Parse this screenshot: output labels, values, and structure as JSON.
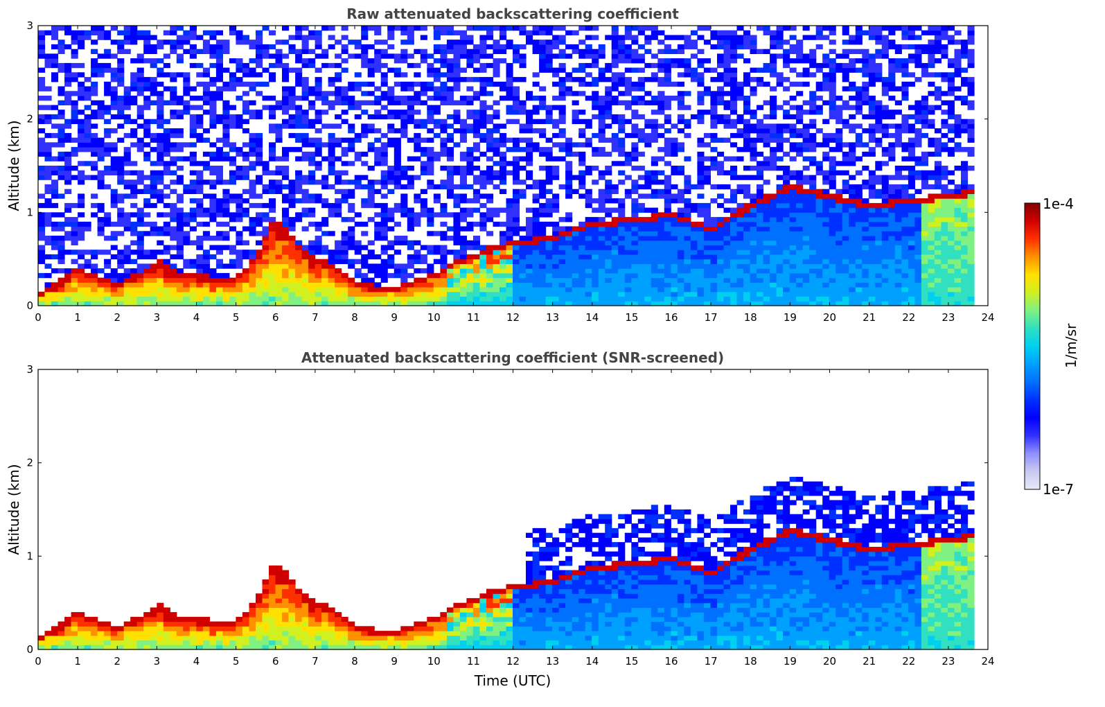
{
  "chart_data": [
    {
      "type": "heatmap",
      "title": "Raw attenuated backscattering coefficient",
      "xlabel": "",
      "ylabel": "Altitude (km)",
      "xlim": [
        0,
        24
      ],
      "ylim": [
        0,
        3
      ],
      "xticks": [
        "0",
        "1",
        "2",
        "3",
        "4",
        "5",
        "6",
        "7",
        "8",
        "9",
        "10",
        "11",
        "12",
        "13",
        "14",
        "15",
        "16",
        "17",
        "18",
        "19",
        "20",
        "21",
        "22",
        "23",
        "24"
      ],
      "yticks": [
        "0",
        "1",
        "2",
        "3"
      ],
      "data_end_time": 23.65,
      "screened": false,
      "layer_top_km": [
        [
          0,
          0.15
        ],
        [
          0.5,
          0.25
        ],
        [
          1,
          0.42
        ],
        [
          1.5,
          0.32
        ],
        [
          2,
          0.25
        ],
        [
          2.5,
          0.35
        ],
        [
          3,
          0.5
        ],
        [
          3.5,
          0.35
        ],
        [
          4,
          0.35
        ],
        [
          4.5,
          0.3
        ],
        [
          5,
          0.3
        ],
        [
          5.5,
          0.55
        ],
        [
          6,
          0.95
        ],
        [
          6.5,
          0.7
        ],
        [
          7,
          0.5
        ],
        [
          7.5,
          0.45
        ],
        [
          8,
          0.25
        ],
        [
          9,
          0.2
        ],
        [
          10,
          0.35
        ],
        [
          10.5,
          0.5
        ],
        [
          11,
          0.55
        ],
        [
          11.5,
          0.65
        ],
        [
          12,
          0.7
        ],
        [
          13,
          0.75
        ],
        [
          14,
          0.9
        ],
        [
          15,
          0.95
        ],
        [
          16,
          1.0
        ],
        [
          17,
          0.85
        ],
        [
          18,
          1.1
        ],
        [
          19,
          1.3
        ],
        [
          20,
          1.2
        ],
        [
          21,
          1.1
        ],
        [
          22,
          1.15
        ],
        [
          23,
          1.2
        ],
        [
          23.65,
          1.25
        ]
      ]
    },
    {
      "type": "heatmap",
      "title": "Attenuated backscattering coefficient (SNR-screened)",
      "xlabel": "Time (UTC)",
      "ylabel": "Altitude (km)",
      "xlim": [
        0,
        24
      ],
      "ylim": [
        0,
        3
      ],
      "xticks": [
        "0",
        "1",
        "2",
        "3",
        "4",
        "5",
        "6",
        "7",
        "8",
        "9",
        "10",
        "11",
        "12",
        "13",
        "14",
        "15",
        "16",
        "17",
        "18",
        "19",
        "20",
        "21",
        "22",
        "23",
        "24"
      ],
      "yticks": [
        "0",
        "1",
        "2",
        "3"
      ],
      "data_end_time": 23.65,
      "screened": true,
      "layer_top_km": [
        [
          0,
          0.15
        ],
        [
          0.5,
          0.25
        ],
        [
          1,
          0.42
        ],
        [
          1.5,
          0.32
        ],
        [
          2,
          0.25
        ],
        [
          2.5,
          0.35
        ],
        [
          3,
          0.5
        ],
        [
          3.5,
          0.35
        ],
        [
          4,
          0.35
        ],
        [
          4.5,
          0.3
        ],
        [
          5,
          0.3
        ],
        [
          5.5,
          0.55
        ],
        [
          6,
          0.95
        ],
        [
          6.5,
          0.7
        ],
        [
          7,
          0.5
        ],
        [
          7.5,
          0.45
        ],
        [
          8,
          0.25
        ],
        [
          9,
          0.2
        ],
        [
          10,
          0.35
        ],
        [
          10.5,
          0.5
        ],
        [
          11,
          0.55
        ],
        [
          11.5,
          0.65
        ],
        [
          12,
          0.7
        ],
        [
          13,
          0.75
        ],
        [
          14,
          0.9
        ],
        [
          15,
          0.95
        ],
        [
          16,
          1.0
        ],
        [
          17,
          0.85
        ],
        [
          18,
          1.1
        ],
        [
          19,
          1.3
        ],
        [
          20,
          1.2
        ],
        [
          21,
          1.1
        ],
        [
          22,
          1.15
        ],
        [
          23,
          1.2
        ],
        [
          23.65,
          1.25
        ]
      ]
    }
  ],
  "colorbar": {
    "max_label": "1e-4",
    "min_label": "1e-7",
    "unit_label": "1/m/sr",
    "colors": [
      "#e8e8f8",
      "#c8c8f0",
      "#9090ff",
      "#3030ff",
      "#0000ff",
      "#0030ff",
      "#0070ff",
      "#00a0ff",
      "#00d0f0",
      "#30e0c0",
      "#80f080",
      "#d0f020",
      "#ffe000",
      "#ff9000",
      "#ff3000",
      "#d00000",
      "#800000"
    ]
  }
}
